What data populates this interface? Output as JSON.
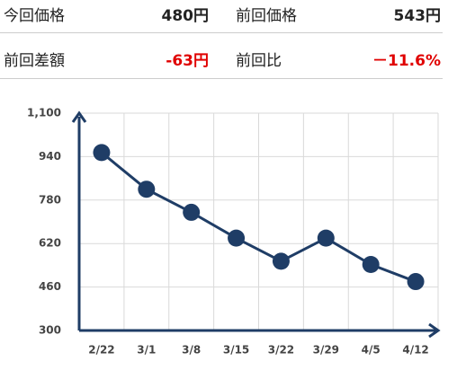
{
  "summary": {
    "rows": [
      [
        "今回価格",
        "480円",
        "前回価格",
        "543円"
      ],
      [
        "前回差額",
        "-63円",
        "前回比",
        "－11.6%"
      ]
    ]
  },
  "chart_data": {
    "type": "line",
    "categories": [
      "2/22",
      "3/1",
      "3/8",
      "3/15",
      "3/22",
      "3/29",
      "4/5",
      "4/12"
    ],
    "values": [
      955,
      820,
      735,
      640,
      555,
      640,
      543,
      480
    ],
    "color": "#1f3d66",
    "ylim": [
      300,
      1100
    ],
    "yticks": [
      300,
      460,
      620,
      780,
      940,
      {
        "value": 1100,
        "label": "1,100"
      }
    ],
    "grid": true
  }
}
